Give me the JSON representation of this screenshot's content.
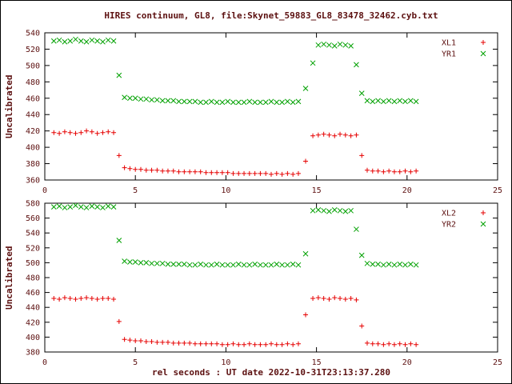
{
  "title": "HIRES continuum, GL8, file:Skynet_59883_GL8_83478_32462.cyb.txt",
  "xlabel": "rel seconds : UT date 2022-10-31T23:13:37.280",
  "colors": {
    "text": "#5c1010",
    "axis": "#000000",
    "red": "#e60000",
    "green": "#00a000",
    "background": "#ffffff"
  },
  "chart_data": [
    {
      "type": "scatter",
      "ylabel": "Uncalibrated",
      "xlabel": "",
      "xlim": [
        0,
        25
      ],
      "ylim": [
        360,
        540
      ],
      "xticks": [
        0,
        5,
        10,
        15,
        20,
        25
      ],
      "yticks": [
        360,
        380,
        400,
        420,
        440,
        460,
        480,
        500,
        520,
        540
      ],
      "legend_position": "top-right",
      "grid": false,
      "x": [
        0.5,
        0.8,
        1.1,
        1.4,
        1.7,
        2.0,
        2.3,
        2.6,
        2.9,
        3.2,
        3.5,
        3.8,
        4.1,
        4.4,
        4.7,
        5.0,
        5.3,
        5.6,
        5.9,
        6.2,
        6.5,
        6.8,
        7.1,
        7.4,
        7.7,
        8.0,
        8.3,
        8.6,
        8.9,
        9.2,
        9.5,
        9.8,
        10.1,
        10.4,
        10.7,
        11.0,
        11.3,
        11.6,
        11.9,
        12.2,
        12.5,
        12.8,
        13.1,
        13.4,
        13.7,
        14.0,
        14.4,
        14.8,
        15.1,
        15.4,
        15.7,
        16.0,
        16.3,
        16.6,
        16.9,
        17.2,
        17.5,
        17.8,
        18.1,
        18.4,
        18.7,
        19.0,
        19.3,
        19.6,
        19.9,
        20.2,
        20.5
      ],
      "series": [
        {
          "name": "XL1",
          "marker": "plus",
          "color": "#e60000",
          "values": [
            418,
            417,
            419,
            418,
            417,
            418,
            420,
            419,
            417,
            418,
            419,
            418,
            390,
            375,
            374,
            373,
            373,
            372,
            372,
            372,
            371,
            371,
            371,
            370,
            370,
            370,
            370,
            370,
            369,
            369,
            369,
            369,
            369,
            368,
            368,
            368,
            368,
            368,
            368,
            368,
            367,
            368,
            367,
            368,
            367,
            368,
            383,
            414,
            415,
            416,
            415,
            414,
            416,
            415,
            414,
            415,
            390,
            372,
            371,
            371,
            370,
            371,
            370,
            370,
            371,
            370,
            371
          ]
        },
        {
          "name": "YR1",
          "marker": "cross",
          "color": "#00a000",
          "values": [
            530,
            531,
            529,
            530,
            532,
            530,
            529,
            531,
            530,
            529,
            531,
            530,
            488,
            461,
            460,
            460,
            459,
            459,
            458,
            458,
            457,
            457,
            457,
            456,
            456,
            456,
            456,
            455,
            455,
            456,
            455,
            455,
            456,
            455,
            455,
            455,
            456,
            455,
            455,
            455,
            456,
            455,
            455,
            456,
            455,
            456,
            472,
            503,
            525,
            526,
            525,
            524,
            526,
            525,
            524,
            501,
            466,
            457,
            456,
            457,
            456,
            457,
            456,
            457,
            456,
            457,
            456
          ]
        }
      ]
    },
    {
      "type": "scatter",
      "ylabel": "Uncalibrated",
      "xlabel": "",
      "xlim": [
        0,
        25
      ],
      "ylim": [
        380,
        580
      ],
      "xticks": [
        0,
        5,
        10,
        15,
        20,
        25
      ],
      "yticks": [
        380,
        400,
        420,
        440,
        460,
        480,
        500,
        520,
        540,
        560,
        580
      ],
      "legend_position": "top-right",
      "grid": false,
      "x": [
        0.5,
        0.8,
        1.1,
        1.4,
        1.7,
        2.0,
        2.3,
        2.6,
        2.9,
        3.2,
        3.5,
        3.8,
        4.1,
        4.4,
        4.7,
        5.0,
        5.3,
        5.6,
        5.9,
        6.2,
        6.5,
        6.8,
        7.1,
        7.4,
        7.7,
        8.0,
        8.3,
        8.6,
        8.9,
        9.2,
        9.5,
        9.8,
        10.1,
        10.4,
        10.7,
        11.0,
        11.3,
        11.6,
        11.9,
        12.2,
        12.5,
        12.8,
        13.1,
        13.4,
        13.7,
        14.0,
        14.4,
        14.8,
        15.1,
        15.4,
        15.7,
        16.0,
        16.3,
        16.6,
        16.9,
        17.2,
        17.5,
        17.8,
        18.1,
        18.4,
        18.7,
        19.0,
        19.3,
        19.6,
        19.9,
        20.2,
        20.5
      ],
      "series": [
        {
          "name": "XL2",
          "marker": "plus",
          "color": "#e60000",
          "values": [
            452,
            451,
            453,
            452,
            451,
            452,
            453,
            452,
            451,
            452,
            452,
            451,
            421,
            397,
            396,
            395,
            395,
            394,
            394,
            393,
            393,
            393,
            392,
            392,
            392,
            392,
            391,
            391,
            391,
            391,
            391,
            390,
            390,
            391,
            390,
            390,
            391,
            390,
            390,
            390,
            391,
            390,
            390,
            391,
            390,
            391,
            430,
            452,
            453,
            452,
            451,
            453,
            452,
            451,
            452,
            450,
            415,
            392,
            391,
            391,
            390,
            391,
            390,
            391,
            390,
            391,
            390
          ]
        },
        {
          "name": "YR2",
          "marker": "cross",
          "color": "#00a000",
          "values": [
            575,
            576,
            574,
            575,
            577,
            575,
            574,
            576,
            575,
            574,
            576,
            575,
            530,
            502,
            501,
            501,
            500,
            500,
            499,
            499,
            499,
            498,
            498,
            498,
            498,
            497,
            497,
            498,
            497,
            497,
            498,
            497,
            497,
            497,
            498,
            497,
            497,
            498,
            497,
            497,
            497,
            498,
            497,
            497,
            498,
            497,
            512,
            570,
            571,
            570,
            569,
            571,
            570,
            569,
            570,
            545,
            510,
            499,
            498,
            498,
            497,
            498,
            497,
            498,
            497,
            498,
            497
          ]
        }
      ]
    }
  ]
}
